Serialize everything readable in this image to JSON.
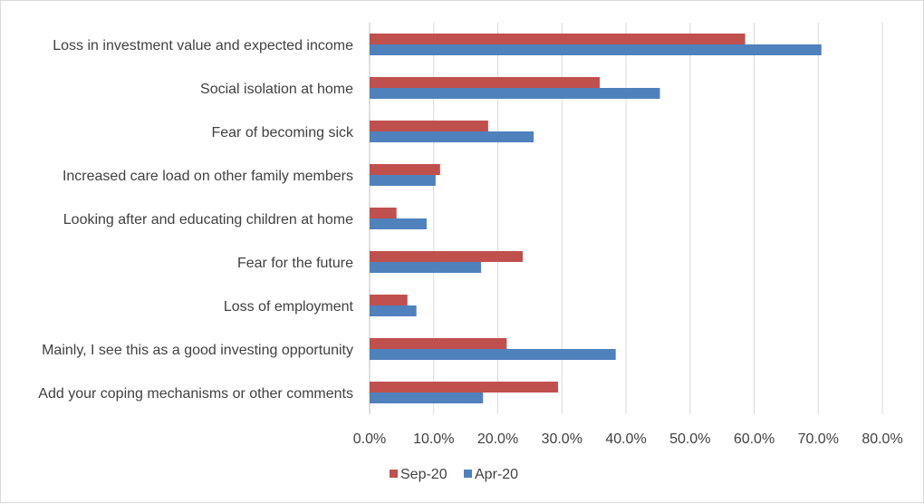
{
  "chart_data": {
    "type": "bar",
    "orientation": "horizontal",
    "categories": [
      "Loss in investment value and expected income",
      "Social isolation at home",
      "Fear of becoming sick",
      "Increased care load on other family members",
      "Looking after and educating children at home",
      "Fear for the future",
      "Loss of employment",
      "Mainly, I see this as a good investing opportunity",
      "Add your coping mechanisms or other comments"
    ],
    "series": [
      {
        "name": "Sep-20",
        "color": "#c0504d",
        "values": [
          58.6,
          35.9,
          18.5,
          11.0,
          4.2,
          23.9,
          5.9,
          21.4,
          29.4
        ]
      },
      {
        "name": "Apr-20",
        "color": "#4f81bd",
        "values": [
          70.5,
          45.3,
          25.6,
          10.3,
          8.9,
          17.4,
          7.3,
          38.4,
          17.7
        ]
      }
    ],
    "title": "",
    "xlabel": "",
    "ylabel": "",
    "xlim": [
      0,
      80
    ],
    "ticks": [
      "0.0%",
      "10.0%",
      "20.0%",
      "30.0%",
      "40.0%",
      "50.0%",
      "60.0%",
      "70.0%",
      "80.0%"
    ],
    "grid": "vertical",
    "legend_position": "bottom"
  }
}
